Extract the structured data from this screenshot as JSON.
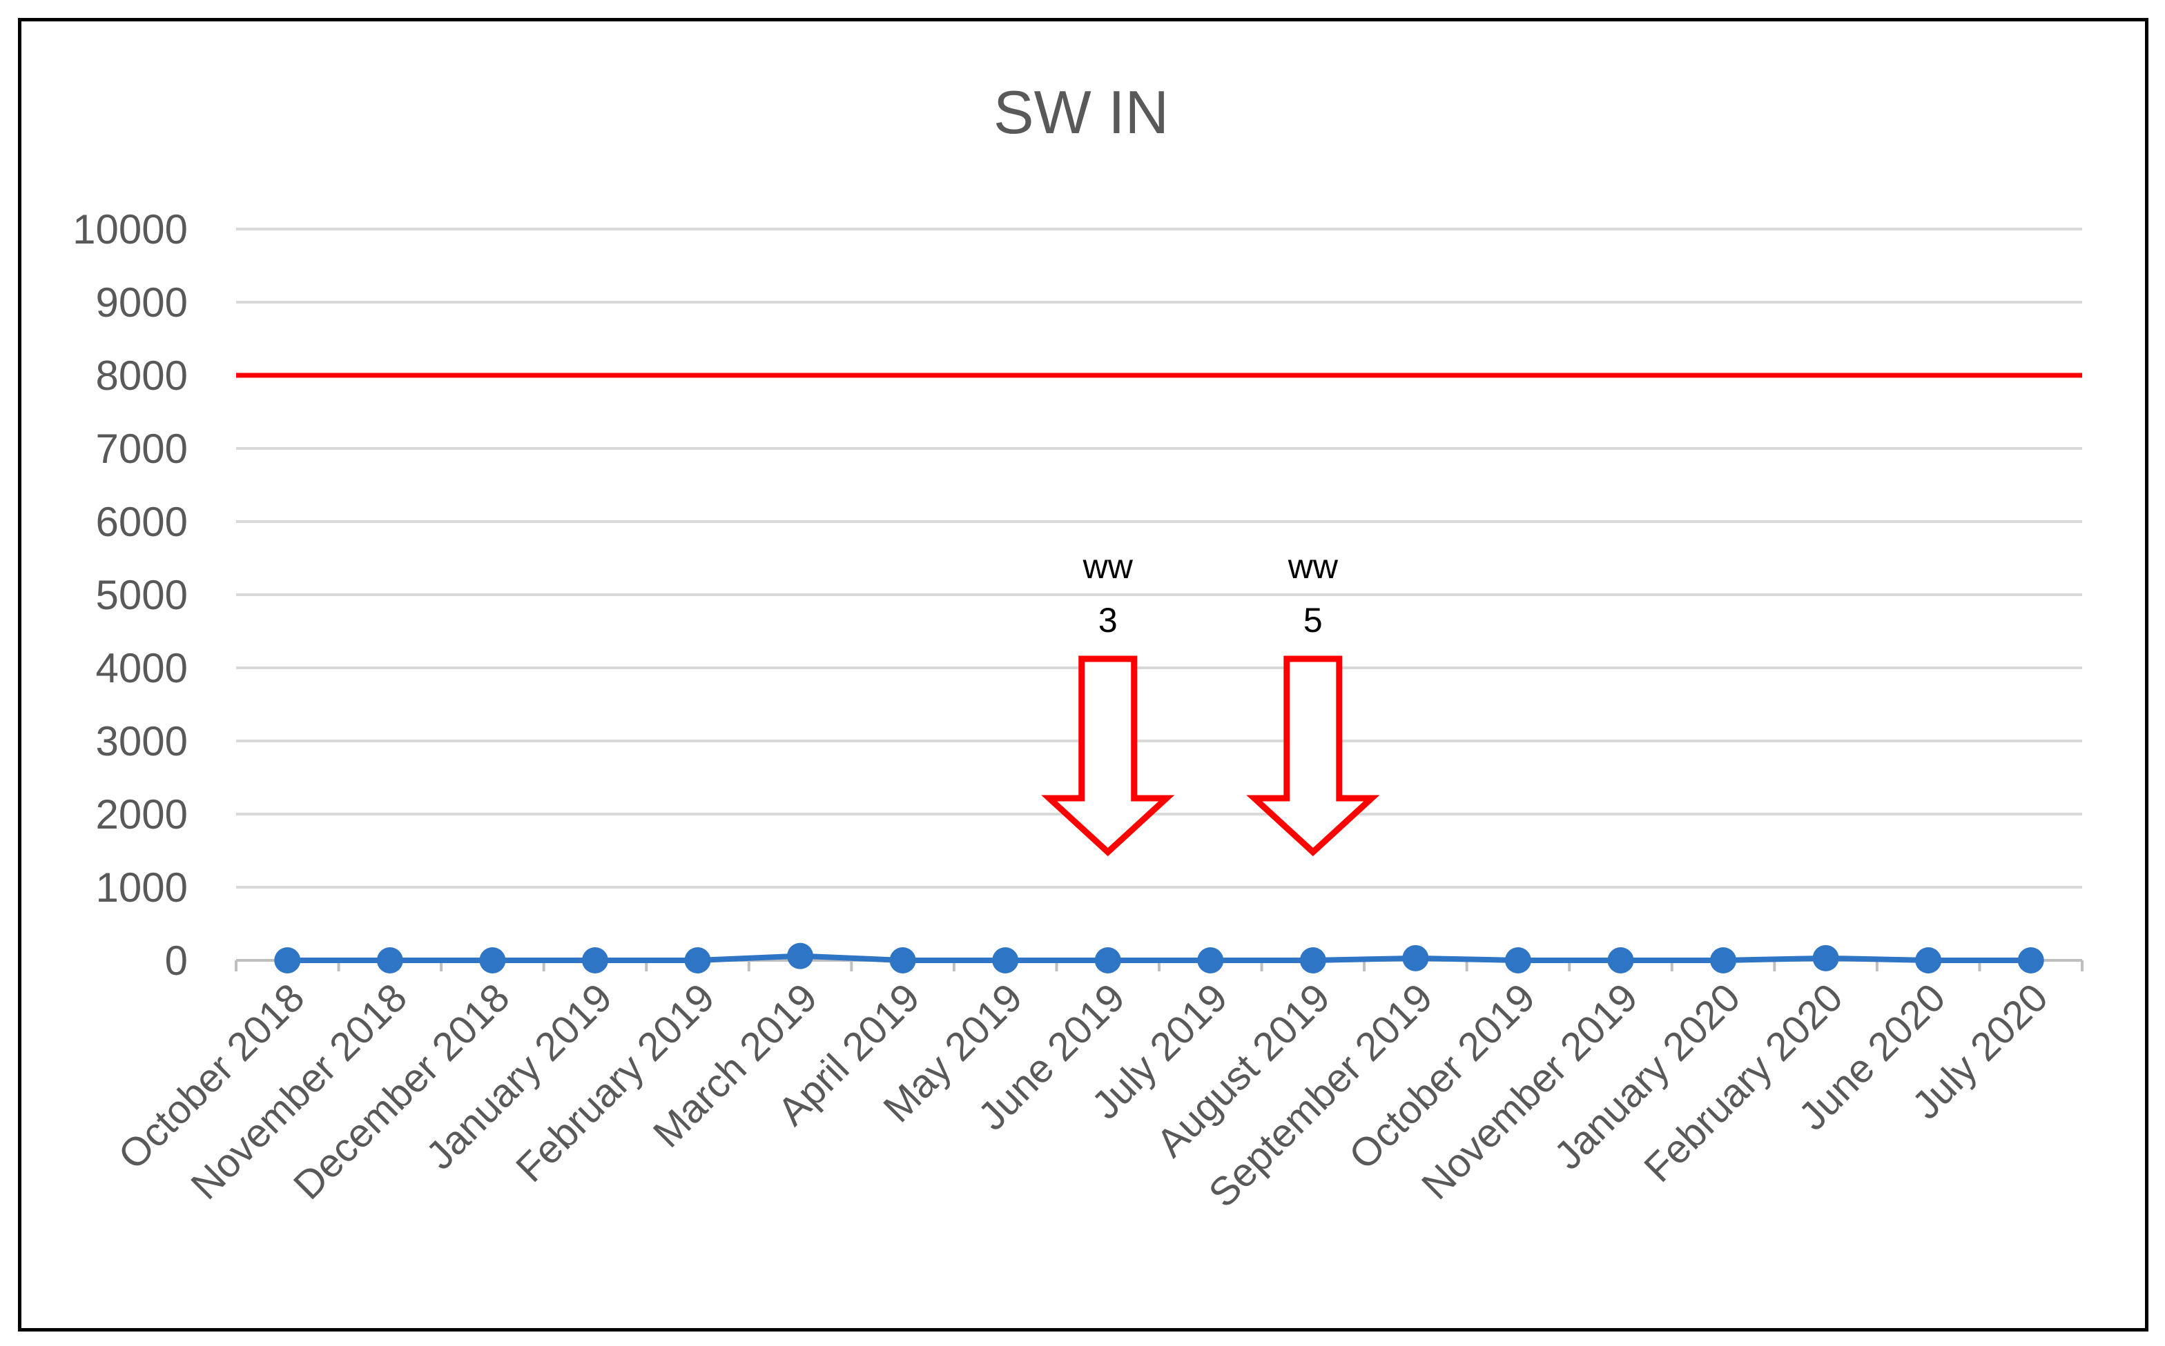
{
  "chart_data": {
    "type": "line",
    "title": "SW IN",
    "xlabel": "",
    "ylabel": "",
    "ylim": [
      0,
      10000
    ],
    "yticks": [
      "0",
      "1000",
      "2000",
      "3000",
      "4000",
      "5000",
      "6000",
      "7000",
      "8000",
      "9000",
      "10000"
    ],
    "categories": [
      "October 2018",
      "November 2018",
      "December 2018",
      "January 2019",
      "February 2019",
      "March 2019",
      "April 2019",
      "May 2019",
      "June 2019",
      "July 2019",
      "August 2019",
      "September 2019",
      "October 2019",
      "November 2019",
      "January 2020",
      "February 2020",
      "June 2020",
      "July 2020"
    ],
    "series": [
      {
        "values": [
          0,
          0,
          0,
          0,
          0,
          60,
          0,
          0,
          0,
          0,
          0,
          30,
          0,
          0,
          0,
          30,
          0,
          0
        ],
        "color": "#2E75C6"
      }
    ],
    "reference_line": {
      "value": 8000,
      "color": "#FF0000"
    },
    "annotations": [
      {
        "category": "June 2019",
        "line1": "ww",
        "line2": "3",
        "shape": "down-arrow",
        "color": "#FF0000"
      },
      {
        "category": "August 2019",
        "line1": "ww",
        "line2": "5",
        "shape": "down-arrow",
        "color": "#FF0000"
      }
    ],
    "grid": true,
    "legend": "none"
  }
}
